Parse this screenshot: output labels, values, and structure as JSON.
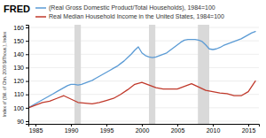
{
  "chart_data": {
    "type": "line",
    "title": "FRED",
    "ylabel": "Index of (Bill. of Chn. 2009 $/Thous.), Index",
    "xlim": [
      1984.0,
      2016.5
    ],
    "xticks": [
      1985,
      1990,
      1995,
      2000,
      2005,
      2010,
      2015
    ],
    "ylim": [
      88,
      162
    ],
    "yticks": [
      90,
      100,
      110,
      120,
      130,
      140,
      150,
      160
    ],
    "grid": true,
    "legend": "top",
    "bands": [
      [
        1990.5,
        1991.4
      ],
      [
        2001.0,
        2001.9
      ],
      [
        2007.9,
        2009.5
      ]
    ],
    "series": [
      {
        "name": "(Real Gross Domestic Product/Total Households), 1984=100",
        "color": "#5b9bd5",
        "x": [
          1984,
          1984.5,
          1985,
          1985.5,
          1986,
          1986.5,
          1987,
          1987.5,
          1988,
          1988.5,
          1989,
          1989.5,
          1990,
          1990.5,
          1991,
          1991.5,
          1992,
          1992.5,
          1993,
          1993.5,
          1994,
          1994.5,
          1995,
          1995.5,
          1996,
          1996.5,
          1997,
          1997.5,
          1998,
          1998.5,
          1999,
          1999.5,
          2000,
          2000.5,
          2001,
          2001.5,
          2002,
          2002.5,
          2003,
          2003.5,
          2004,
          2004.5,
          2005,
          2005.5,
          2006,
          2006.5,
          2007,
          2007.5,
          2008,
          2008.5,
          2009,
          2009.5,
          2010,
          2010.5,
          2011,
          2011.5,
          2012,
          2012.5,
          2013,
          2013.5,
          2014,
          2014.5,
          2015,
          2015.5,
          2016
        ],
        "values": [
          100,
          101.5,
          103,
          104.5,
          106,
          107.5,
          109,
          110.5,
          112,
          113.5,
          115,
          116.5,
          117.5,
          117.5,
          117,
          117.5,
          118.5,
          119.5,
          120.5,
          122,
          123.5,
          125,
          126.5,
          128,
          129.5,
          131,
          133,
          135,
          137.5,
          140,
          143,
          145.5,
          141,
          139,
          138,
          137.5,
          138,
          139,
          140,
          141,
          143,
          145,
          147,
          149,
          150.5,
          151,
          151,
          151,
          150.5,
          149.5,
          147,
          144,
          143.5,
          144,
          145,
          146.5,
          147.5,
          148.5,
          149.5,
          150.5,
          151.5,
          153,
          154.5,
          156,
          157
        ]
      },
      {
        "name": "Real Median Household Income in the United States, 1984=100",
        "color": "#c0392b",
        "x": [
          1984,
          1985,
          1986,
          1987,
          1988,
          1989,
          1990,
          1991,
          1992,
          1993,
          1994,
          1995,
          1996,
          1997,
          1998,
          1999,
          2000,
          2001,
          2002,
          2003,
          2004,
          2005,
          2006,
          2007,
          2008,
          2009,
          2010,
          2011,
          2012,
          2013,
          2014,
          2015,
          2016
        ],
        "values": [
          100,
          102,
          104,
          105,
          107,
          109,
          106.5,
          104,
          103.5,
          103,
          104,
          105.5,
          107,
          110,
          113.5,
          117.5,
          119,
          117,
          115,
          114,
          114,
          114,
          116,
          118,
          115.5,
          113,
          112,
          111,
          110.5,
          109,
          109,
          112,
          120
        ]
      }
    ]
  }
}
